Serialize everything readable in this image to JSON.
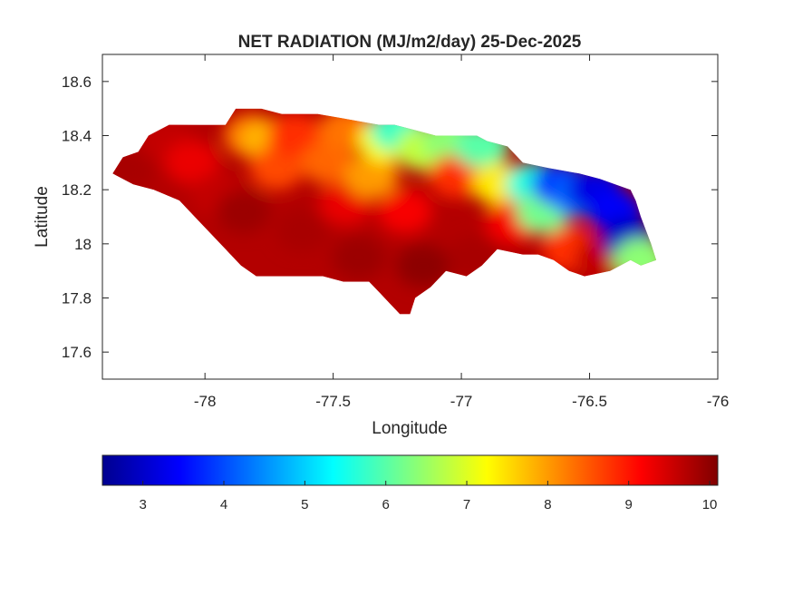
{
  "figure": {
    "title": "NET RADIATION (MJ/m2/day) 25-Dec-2025",
    "xlabel": "Longitude",
    "ylabel": "Latitude",
    "xticks": [
      "-78",
      "-77.5",
      "-77",
      "-76.5",
      "-76"
    ],
    "yticks": [
      "18.6",
      "18.4",
      "18.2",
      "18",
      "17.8",
      "17.6"
    ]
  },
  "colorbar": {
    "ticks": [
      "3",
      "4",
      "5",
      "6",
      "7",
      "8",
      "9",
      "10"
    ],
    "colormap": "jet",
    "colors": [
      "#00008f",
      "#0000ff",
      "#0080ff",
      "#00ffff",
      "#80ff80",
      "#ffff00",
      "#ff8000",
      "#ff0000",
      "#800000"
    ]
  },
  "chart_data": {
    "type": "heatmap",
    "title": "NET RADIATION (MJ/m2/day) 25-Dec-2025",
    "xlabel": "Longitude",
    "ylabel": "Latitude",
    "xlim": [
      -78.4,
      -76
    ],
    "ylim": [
      17.5,
      18.7
    ],
    "xticks": [
      -78,
      -77.5,
      -77,
      -76.5,
      -76
    ],
    "yticks": [
      17.6,
      17.8,
      18,
      18.2,
      18.4,
      18.6
    ],
    "color_range": [
      2.5,
      10.1
    ],
    "colorbar_ticks": [
      3,
      4,
      5,
      6,
      7,
      8,
      9,
      10
    ],
    "grid": false,
    "region_outline": [
      [
        -78.36,
        18.26
      ],
      [
        -78.32,
        18.32
      ],
      [
        -78.26,
        18.34
      ],
      [
        -78.22,
        18.4
      ],
      [
        -78.14,
        18.44
      ],
      [
        -78.0,
        18.44
      ],
      [
        -77.92,
        18.44
      ],
      [
        -77.88,
        18.5
      ],
      [
        -77.78,
        18.5
      ],
      [
        -77.7,
        18.48
      ],
      [
        -77.56,
        18.48
      ],
      [
        -77.44,
        18.46
      ],
      [
        -77.32,
        18.44
      ],
      [
        -77.26,
        18.44
      ],
      [
        -77.18,
        18.42
      ],
      [
        -77.1,
        18.4
      ],
      [
        -77.02,
        18.4
      ],
      [
        -76.94,
        18.4
      ],
      [
        -76.9,
        18.38
      ],
      [
        -76.82,
        18.36
      ],
      [
        -76.76,
        18.3
      ],
      [
        -76.66,
        18.28
      ],
      [
        -76.54,
        18.26
      ],
      [
        -76.46,
        18.24
      ],
      [
        -76.4,
        18.22
      ],
      [
        -76.34,
        18.2
      ],
      [
        -76.32,
        18.16
      ],
      [
        -76.3,
        18.1
      ],
      [
        -76.26,
        18.0
      ],
      [
        -76.24,
        17.94
      ],
      [
        -76.3,
        17.92
      ],
      [
        -76.34,
        17.94
      ],
      [
        -76.42,
        17.9
      ],
      [
        -76.52,
        17.88
      ],
      [
        -76.58,
        17.9
      ],
      [
        -76.64,
        17.94
      ],
      [
        -76.7,
        17.96
      ],
      [
        -76.76,
        17.96
      ],
      [
        -76.86,
        17.98
      ],
      [
        -76.92,
        17.92
      ],
      [
        -76.98,
        17.88
      ],
      [
        -77.06,
        17.9
      ],
      [
        -77.12,
        17.84
      ],
      [
        -77.18,
        17.8
      ],
      [
        -77.2,
        17.74
      ],
      [
        -77.24,
        17.74
      ],
      [
        -77.28,
        17.78
      ],
      [
        -77.32,
        17.82
      ],
      [
        -77.36,
        17.86
      ],
      [
        -77.46,
        17.86
      ],
      [
        -77.54,
        17.88
      ],
      [
        -77.62,
        17.88
      ],
      [
        -77.72,
        17.88
      ],
      [
        -77.8,
        17.88
      ],
      [
        -77.86,
        17.92
      ],
      [
        -77.92,
        17.98
      ],
      [
        -77.98,
        18.04
      ],
      [
        -78.04,
        18.1
      ],
      [
        -78.1,
        18.16
      ],
      [
        -78.2,
        18.2
      ],
      [
        -78.28,
        18.22
      ],
      [
        -78.36,
        18.26
      ]
    ],
    "value_zones": [
      {
        "lon": -78.3,
        "lat": 18.28,
        "value": 9.8
      },
      {
        "lon": -78.15,
        "lat": 18.38,
        "value": 9.6
      },
      {
        "lon": -78.05,
        "lat": 18.3,
        "value": 9.3
      },
      {
        "lon": -77.95,
        "lat": 18.18,
        "value": 9.6
      },
      {
        "lon": -77.85,
        "lat": 18.12,
        "value": 9.9
      },
      {
        "lon": -77.82,
        "lat": 18.4,
        "value": 8.2
      },
      {
        "lon": -77.75,
        "lat": 18.38,
        "value": 7.8
      },
      {
        "lon": -77.72,
        "lat": 18.28,
        "value": 8.6
      },
      {
        "lon": -77.65,
        "lat": 18.4,
        "value": 8.8
      },
      {
        "lon": -77.62,
        "lat": 18.05,
        "value": 9.8
      },
      {
        "lon": -77.52,
        "lat": 18.3,
        "value": 8.4
      },
      {
        "lon": -77.45,
        "lat": 18.42,
        "value": 8.3
      },
      {
        "lon": -77.45,
        "lat": 18.15,
        "value": 9.3
      },
      {
        "lon": -77.4,
        "lat": 17.95,
        "value": 9.9
      },
      {
        "lon": -77.35,
        "lat": 18.25,
        "value": 8.0
      },
      {
        "lon": -77.3,
        "lat": 18.38,
        "value": 7.2
      },
      {
        "lon": -77.25,
        "lat": 18.42,
        "value": 5.8
      },
      {
        "lon": -77.22,
        "lat": 18.12,
        "value": 9.2
      },
      {
        "lon": -77.15,
        "lat": 18.35,
        "value": 6.8
      },
      {
        "lon": -77.15,
        "lat": 17.92,
        "value": 10.0
      },
      {
        "lon": -77.05,
        "lat": 18.38,
        "value": 6.4
      },
      {
        "lon": -77.02,
        "lat": 18.25,
        "value": 8.8
      },
      {
        "lon": -76.95,
        "lat": 17.95,
        "value": 9.8
      },
      {
        "lon": -76.92,
        "lat": 18.36,
        "value": 6.0
      },
      {
        "lon": -76.85,
        "lat": 18.22,
        "value": 7.4
      },
      {
        "lon": -76.8,
        "lat": 18.08,
        "value": 9.2
      },
      {
        "lon": -76.72,
        "lat": 18.22,
        "value": 5.6
      },
      {
        "lon": -76.68,
        "lat": 18.12,
        "value": 6.2
      },
      {
        "lon": -76.62,
        "lat": 18.22,
        "value": 3.8
      },
      {
        "lon": -76.58,
        "lat": 17.98,
        "value": 8.8
      },
      {
        "lon": -76.55,
        "lat": 18.18,
        "value": 4.2
      },
      {
        "lon": -76.48,
        "lat": 18.2,
        "value": 3.2
      },
      {
        "lon": -76.45,
        "lat": 17.95,
        "value": 9.6
      },
      {
        "lon": -76.4,
        "lat": 18.12,
        "value": 3.4
      },
      {
        "lon": -76.35,
        "lat": 18.02,
        "value": 2.9
      },
      {
        "lon": -76.3,
        "lat": 17.94,
        "value": 6.4
      }
    ]
  }
}
